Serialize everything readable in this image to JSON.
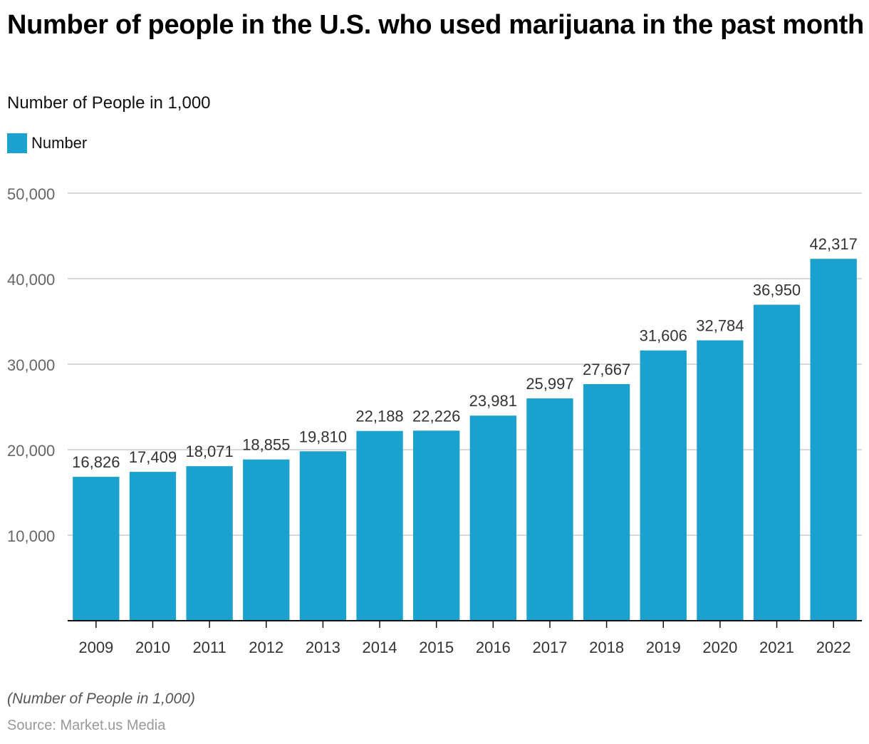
{
  "header": {
    "title": "Number of people in the U.S. who used marijuana in the past month",
    "subtitle": "Number of People in 1,000"
  },
  "legend": {
    "label": "Number",
    "color": "#1aa1cd"
  },
  "footer": {
    "note": "(Number of People in 1,000)",
    "source": "Source: Market.us Media"
  },
  "chart_data": {
    "type": "bar",
    "title": "Number of people in the U.S. who used marijuana in the past month",
    "subtitle": "Number of People in 1,000",
    "xlabel": "",
    "ylabel": "",
    "categories": [
      "2009",
      "2010",
      "2011",
      "2012",
      "2013",
      "2014",
      "2015",
      "2016",
      "2017",
      "2018",
      "2019",
      "2020",
      "2021",
      "2022"
    ],
    "series": [
      {
        "name": "Number",
        "color": "#1aa1cd",
        "values": [
          16826,
          17409,
          18071,
          18855,
          19810,
          22188,
          22226,
          23981,
          25997,
          27667,
          31606,
          32784,
          36950,
          42317
        ]
      }
    ],
    "value_labels": [
      "16,826",
      "17,409",
      "18,071",
      "18,855",
      "19,810",
      "22,188",
      "22,226",
      "23,981",
      "25,997",
      "27,667",
      "31,606",
      "32,784",
      "36,950",
      "42,317"
    ],
    "ylim": [
      0,
      50000
    ],
    "yticks": [
      10000,
      20000,
      30000,
      40000,
      50000
    ],
    "ytick_labels": [
      "10,000",
      "20,000",
      "30,000",
      "40,000",
      "50,000"
    ],
    "grid": true,
    "legend_position": "top-left"
  }
}
